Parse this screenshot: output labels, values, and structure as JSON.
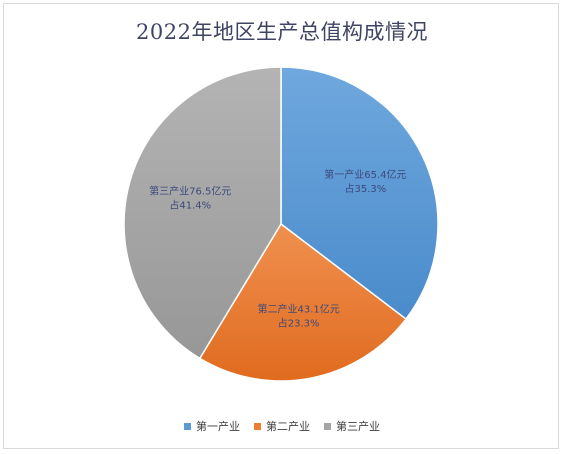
{
  "chart_data": {
    "type": "pie",
    "title": "2022年地区生产总值构成情况",
    "categories": [
      "第一产业",
      "第二产业",
      "第三产业"
    ],
    "values": [
      65.4,
      43.1,
      76.5
    ],
    "percentages": [
      "35.3%",
      "23.3%",
      "41.4%"
    ],
    "labels": [
      {
        "line1": "第一产业65.4亿元",
        "line2": "占35.3%"
      },
      {
        "line1": "第二产业43.1亿元",
        "line2": "占23.3%"
      },
      {
        "line1": "第三产业76.5亿元",
        "line2": "占41.4%"
      }
    ],
    "colors": [
      "#5b9bd5",
      "#ed7d31",
      "#a5a5a5"
    ],
    "legend_position": "bottom",
    "start_angle": "12 o'clock",
    "direction": "clockwise"
  }
}
